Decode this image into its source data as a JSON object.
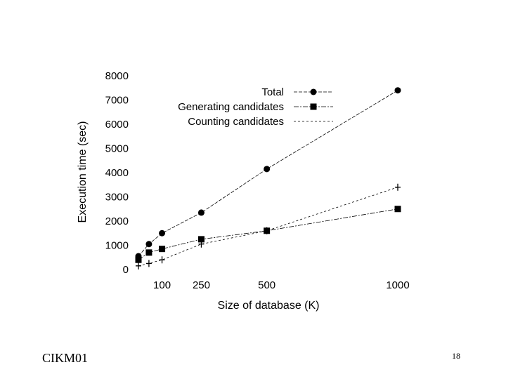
{
  "chart_data": {
    "type": "line",
    "xlabel": "Size of database (K)",
    "ylabel": "Execution time (sec)",
    "x_ticks": [
      100,
      250,
      500,
      1000
    ],
    "y_ticks": [
      0,
      1000,
      2000,
      3000,
      4000,
      5000,
      6000,
      7000,
      8000
    ],
    "ylim": [
      0,
      8000
    ],
    "grid": false,
    "legend_position": "top-right",
    "series": [
      {
        "name": "Total",
        "marker": "circle",
        "x": [
          10,
          50,
          100,
          250,
          500,
          1000
        ],
        "values": [
          550,
          1050,
          1500,
          2350,
          4150,
          7400
        ]
      },
      {
        "name": "Generating candidates",
        "marker": "square",
        "x": [
          10,
          50,
          100,
          250,
          500,
          1000
        ],
        "values": [
          400,
          700,
          850,
          1250,
          1600,
          2500
        ]
      },
      {
        "name": "Counting candidates",
        "marker": "plus",
        "x": [
          10,
          50,
          100,
          250,
          500,
          1000
        ],
        "values": [
          150,
          250,
          400,
          1050,
          1600,
          3400
        ]
      }
    ]
  },
  "footer": {
    "left_text": "CIKM01",
    "page_number": "18"
  }
}
